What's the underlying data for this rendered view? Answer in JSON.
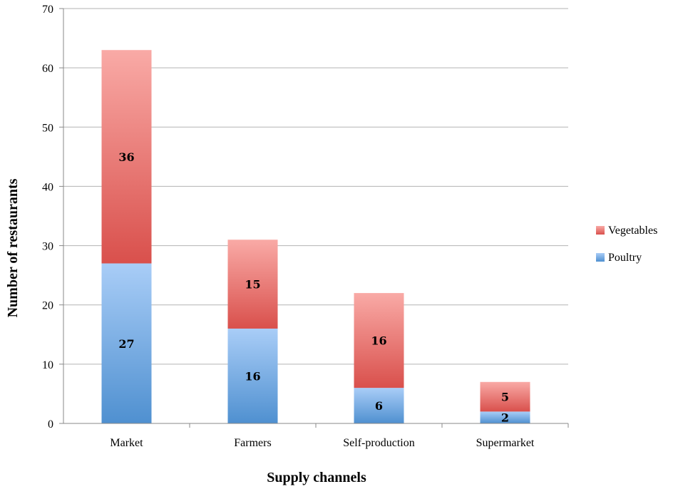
{
  "chart_data": {
    "type": "bar",
    "stacked": true,
    "categories": [
      "Market",
      "Farmers",
      "Self-production",
      "Supermarket"
    ],
    "series": [
      {
        "name": "Poultry",
        "values": [
          27,
          16,
          6,
          2
        ],
        "color_top": "#a9cdf7",
        "color_bottom": "#4f90d0"
      },
      {
        "name": "Vegetables",
        "values": [
          36,
          15,
          16,
          5
        ],
        "color_top": "#f9aaa6",
        "color_bottom": "#d9504c"
      }
    ],
    "xlabel": "Supply channels",
    "ylabel": "Number of restaurants",
    "ylim": [
      0,
      70
    ],
    "yticks": [
      0,
      10,
      20,
      30,
      40,
      50,
      60,
      70
    ],
    "grid": true,
    "legend_position": "right",
    "legend_order": [
      "Vegetables",
      "Poultry"
    ]
  }
}
